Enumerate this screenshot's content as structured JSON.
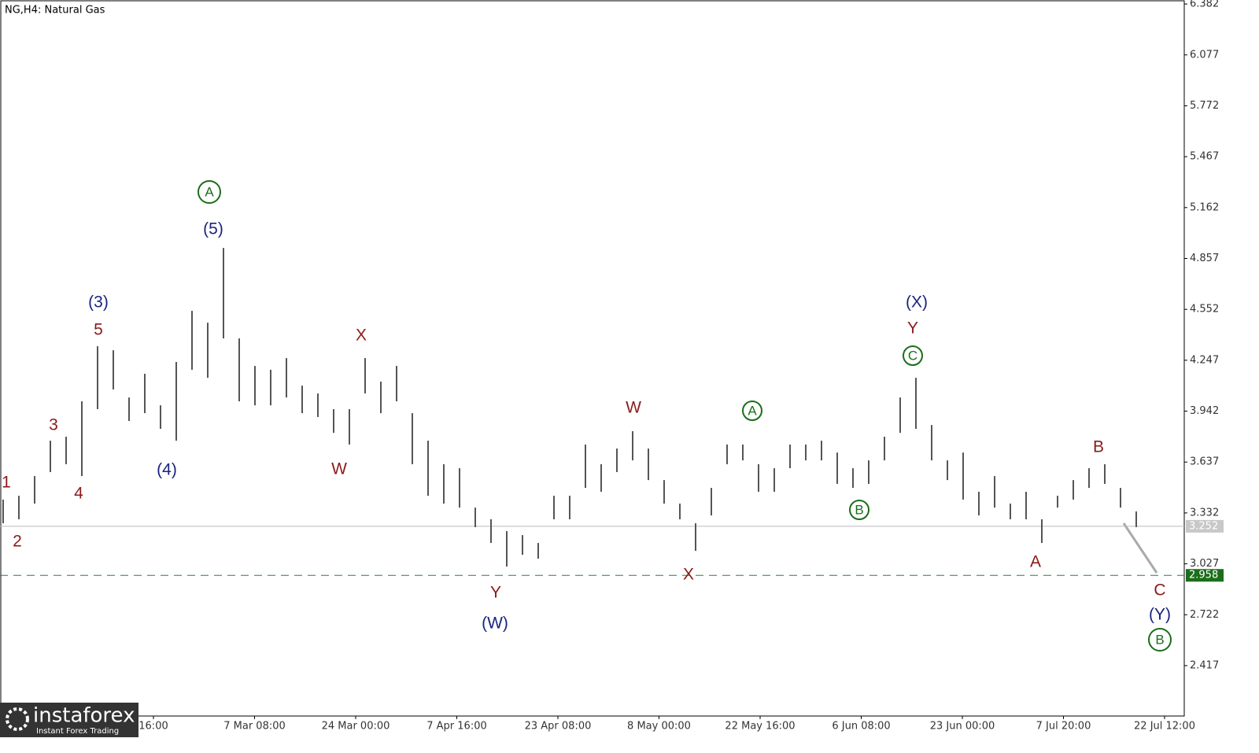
{
  "chart_data": {
    "type": "ohlc",
    "title": "NG,H4:  Natural Gas",
    "highs": [
      3.412,
      3.435,
      3.553,
      3.765,
      3.789,
      4.001,
      4.331,
      4.307,
      4.024,
      4.166,
      3.977,
      4.237,
      4.543,
      4.472,
      4.92,
      4.378,
      4.213,
      4.19,
      4.26,
      4.095,
      4.048,
      3.954,
      3.954,
      4.26,
      4.119,
      4.213,
      3.93,
      3.765,
      3.624,
      3.6,
      3.364,
      3.294,
      3.223,
      3.199,
      3.152,
      3.435,
      3.435,
      3.742,
      3.624,
      3.718,
      3.822,
      3.718,
      3.529,
      3.388,
      3.27,
      3.482,
      3.742,
      3.742,
      3.624,
      3.6,
      3.742,
      3.742,
      3.765,
      3.694,
      3.6,
      3.647,
      3.789,
      4.024,
      4.142,
      3.859,
      3.647,
      3.694,
      3.459,
      3.553,
      3.388,
      3.459,
      3.294,
      3.435,
      3.529,
      3.6,
      3.624,
      3.482,
      3.341
    ],
    "lows": [
      3.27,
      3.294,
      3.388,
      3.577,
      3.624,
      3.553,
      3.954,
      4.072,
      3.883,
      3.93,
      3.836,
      3.765,
      4.19,
      4.142,
      4.378,
      4.001,
      3.977,
      3.977,
      4.024,
      3.93,
      3.907,
      3.812,
      3.742,
      4.048,
      3.93,
      4.001,
      3.624,
      3.435,
      3.388,
      3.364,
      3.247,
      3.152,
      3.011,
      3.081,
      3.058,
      3.294,
      3.294,
      3.482,
      3.459,
      3.577,
      3.647,
      3.529,
      3.388,
      3.294,
      3.105,
      3.317,
      3.624,
      3.647,
      3.459,
      3.459,
      3.6,
      3.647,
      3.647,
      3.506,
      3.482,
      3.506,
      3.647,
      3.812,
      3.836,
      3.647,
      3.529,
      3.412,
      3.317,
      3.364,
      3.294,
      3.294,
      3.152,
      3.364,
      3.412,
      3.482,
      3.506,
      3.364,
      3.247
    ],
    "color": "#555555",
    "ylim": [
      2.115,
      6.406
    ],
    "yticks": [
      6.382,
      6.077,
      5.772,
      5.467,
      5.162,
      4.857,
      4.552,
      4.247,
      3.942,
      3.637,
      3.332,
      3.027,
      2.722,
      2.417
    ],
    "x_labels": [
      "16:00",
      "7 Mar 08:00",
      "24 Mar 00:00",
      "7 Apr 16:00",
      "23 Apr 08:00",
      "8 May 00:00",
      "22 May 16:00",
      "6 Jun 08:00",
      "23 Jun 00:00",
      "7 Jul 20:00",
      "22 Jul 12:00"
    ],
    "current_price": 3.252,
    "target_level": 2.958,
    "annotations": [
      "1",
      "2",
      "3",
      "4",
      "5",
      "(3)",
      "(4)",
      "(5)",
      "A",
      "X",
      "W",
      "Y",
      "(W)",
      "W",
      "X",
      "A",
      "B",
      "C",
      "Y",
      "(X)",
      "A",
      "B",
      "C",
      "(Y)",
      "B"
    ],
    "logo": {
      "name": "instaforex",
      "tagline": "Instant Forex Trading"
    }
  }
}
